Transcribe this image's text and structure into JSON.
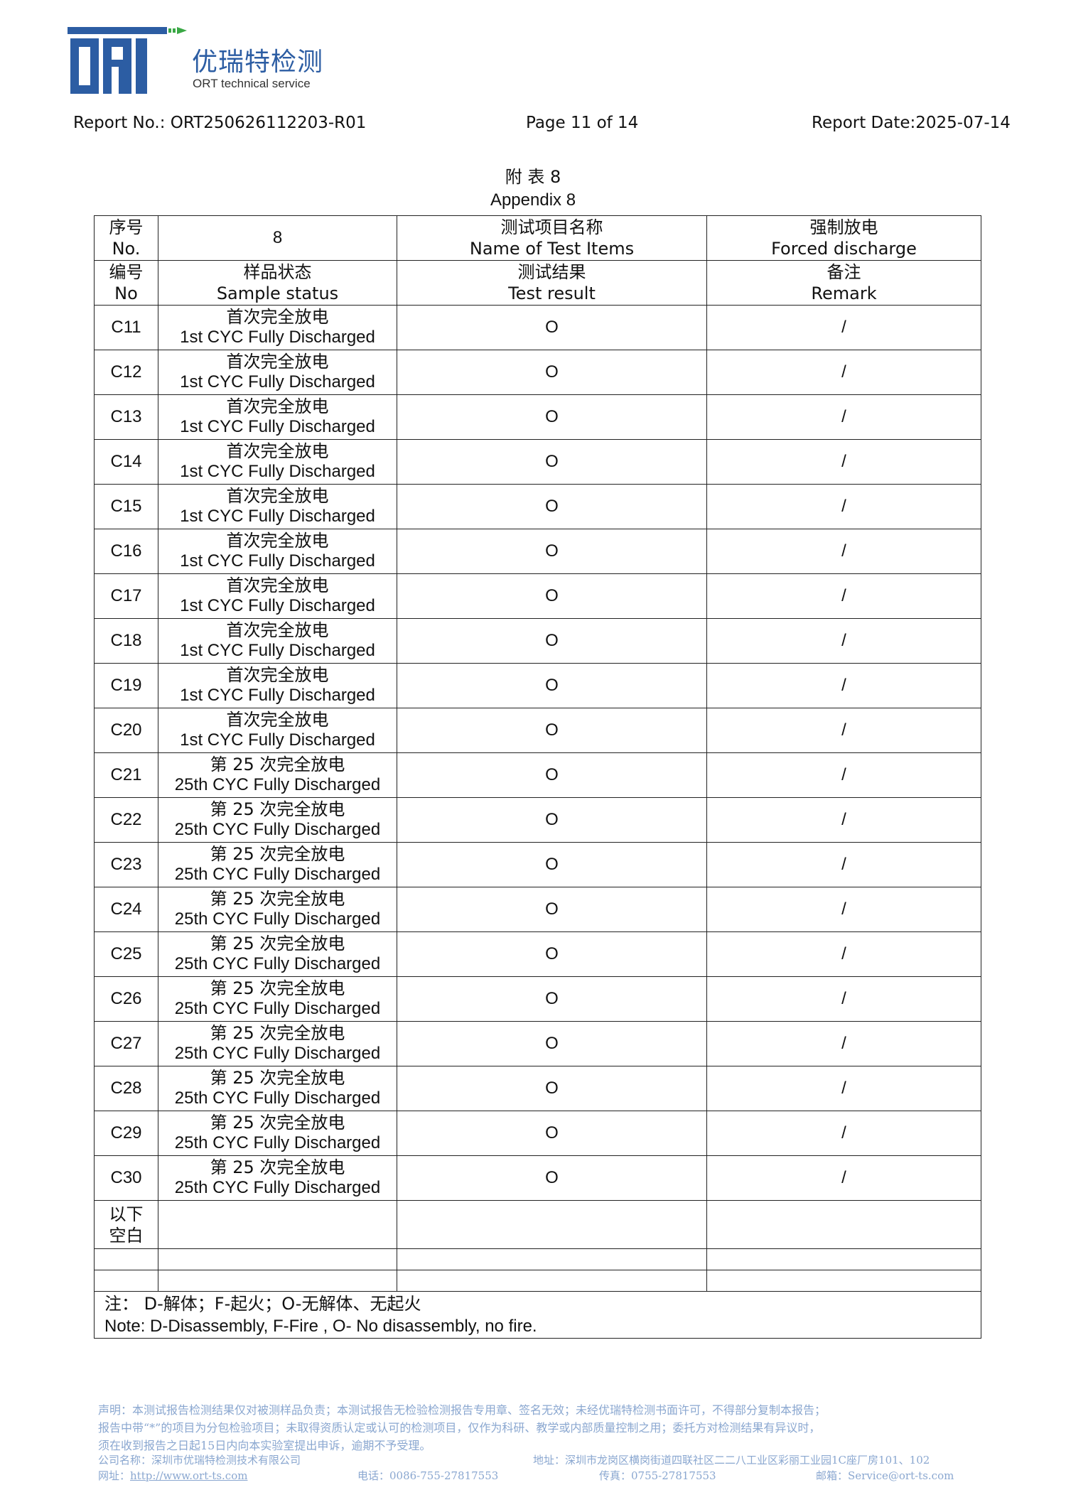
{
  "header": {
    "brand_cn": "优瑞特检测",
    "brand_en": "ORT technical service",
    "report_no": "Report No.: ORT250626112203-R01",
    "page": "Page 11 of 14",
    "report_date": "Report Date:2025-07-14",
    "accent": "#2c5da3"
  },
  "title": {
    "cn": "附 表 8",
    "en": "Appendix 8"
  },
  "table": {
    "h1": {
      "no_cn": "序号",
      "no_en": "No.",
      "no_val": "8",
      "item_cn": "测试项目名称",
      "item_en": "Name of Test Items",
      "val_cn": "强制放电",
      "val_en": "Forced discharge"
    },
    "h2": {
      "id_cn": "编号",
      "id_en": "No",
      "status_cn": "样品状态",
      "status_en": "Sample status",
      "result_cn": "测试结果",
      "result_en": "Test result",
      "remark_cn": "备注",
      "remark_en": "Remark"
    },
    "rows": [
      {
        "id": "C11",
        "cn": "首次完全放电",
        "en": "1st CYC Fully Discharged",
        "result": "O",
        "remark": "/"
      },
      {
        "id": "C12",
        "cn": "首次完全放电",
        "en": "1st CYC Fully Discharged",
        "result": "O",
        "remark": "/"
      },
      {
        "id": "C13",
        "cn": "首次完全放电",
        "en": "1st CYC Fully Discharged",
        "result": "O",
        "remark": "/"
      },
      {
        "id": "C14",
        "cn": "首次完全放电",
        "en": "1st CYC Fully Discharged",
        "result": "O",
        "remark": "/"
      },
      {
        "id": "C15",
        "cn": "首次完全放电",
        "en": "1st CYC Fully Discharged",
        "result": "O",
        "remark": "/"
      },
      {
        "id": "C16",
        "cn": "首次完全放电",
        "en": "1st CYC Fully Discharged",
        "result": "O",
        "remark": "/"
      },
      {
        "id": "C17",
        "cn": "首次完全放电",
        "en": "1st CYC Fully Discharged",
        "result": "O",
        "remark": "/"
      },
      {
        "id": "C18",
        "cn": "首次完全放电",
        "en": "1st CYC Fully Discharged",
        "result": "O",
        "remark": "/"
      },
      {
        "id": "C19",
        "cn": "首次完全放电",
        "en": "1st CYC Fully Discharged",
        "result": "O",
        "remark": "/"
      },
      {
        "id": "C20",
        "cn": "首次完全放电",
        "en": "1st CYC Fully Discharged",
        "result": "O",
        "remark": "/"
      },
      {
        "id": "C21",
        "cn": "第 25 次完全放电",
        "en": "25th CYC Fully Discharged",
        "result": "O",
        "remark": "/"
      },
      {
        "id": "C22",
        "cn": "第 25 次完全放电",
        "en": "25th CYC Fully Discharged",
        "result": "O",
        "remark": "/"
      },
      {
        "id": "C23",
        "cn": "第 25 次完全放电",
        "en": "25th CYC Fully Discharged",
        "result": "O",
        "remark": "/"
      },
      {
        "id": "C24",
        "cn": "第 25 次完全放电",
        "en": "25th CYC Fully Discharged",
        "result": "O",
        "remark": "/"
      },
      {
        "id": "C25",
        "cn": "第 25 次完全放电",
        "en": "25th CYC Fully Discharged",
        "result": "O",
        "remark": "/"
      },
      {
        "id": "C26",
        "cn": "第 25 次完全放电",
        "en": "25th CYC Fully Discharged",
        "result": "O",
        "remark": "/"
      },
      {
        "id": "C27",
        "cn": "第 25 次完全放电",
        "en": "25th CYC Fully Discharged",
        "result": "O",
        "remark": "/"
      },
      {
        "id": "C28",
        "cn": "第 25 次完全放电",
        "en": "25th CYC Fully Discharged",
        "result": "O",
        "remark": "/"
      },
      {
        "id": "C29",
        "cn": "第 25 次完全放电",
        "en": "25th CYC Fully Discharged",
        "result": "O",
        "remark": "/"
      },
      {
        "id": "C30",
        "cn": "第 25 次完全放电",
        "en": "25th CYC Fully Discharged",
        "result": "O",
        "remark": "/"
      }
    ],
    "blank_cn_1": "以下",
    "blank_cn_2": "空白",
    "note_cn": "注：  D-解体；F-起火；O-无解体、无起火",
    "note_en": "Note: D-Disassembly, F-Fire , O- No disassembly, no fire."
  },
  "footer": {
    "line1": "声明：本测试报告检测结果仅对被测样品负责；本测试报告无检验检测报告专用章、签名无效；未经优瑞特检测书面许可，不得部分复制本报告；",
    "line2": "报告中带“*”的项目为分包检验项目；未取得资质认定或认可的检测项目，仅作为科研、教学或内部质量控制之用；委托方对检测结果有异议时，",
    "line3": "须在收到报告之日起15日内向本实验室提出申诉，逾期不予受理。",
    "company": "公司名称：深圳市优瑞特检测技术有限公司",
    "address": "地址：深圳市龙岗区横岗街道四联社区二二八工业区彩丽工业园1C座厂房101、102",
    "website_label": "网址：",
    "website": "http://www.ort-ts.com",
    "phone": "电话：0086-755-27817553",
    "fax": "传真：0755-27817553",
    "email": "邮箱：Service@ort-ts.com"
  }
}
